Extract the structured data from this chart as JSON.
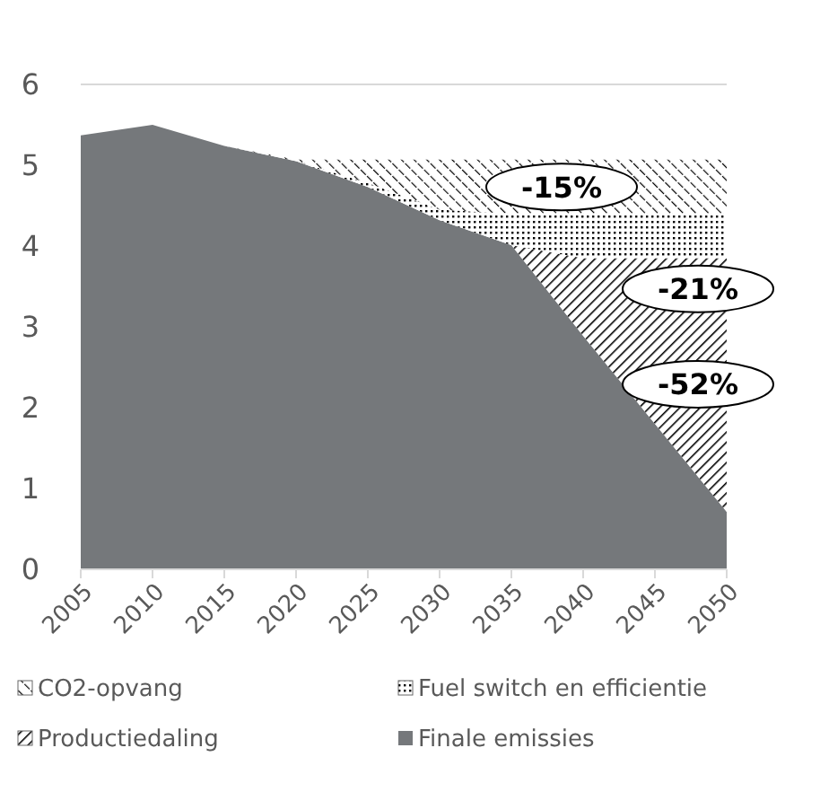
{
  "chart_data": {
    "type": "area",
    "stacked": true,
    "categories": [
      "2005",
      "2010",
      "2015",
      "2020",
      "2025",
      "2030",
      "2035",
      "2040",
      "2045",
      "2050"
    ],
    "series": [
      {
        "name": "Finale emissies",
        "color": "#75787b",
        "values": [
          5.37,
          5.5,
          5.24,
          5.05,
          4.73,
          4.32,
          4.01,
          2.89,
          1.8,
          0.71
        ]
      },
      {
        "name": "Productiedaling",
        "color": "#000000",
        "values": [
          0,
          0,
          0,
          0,
          0,
          0,
          0,
          0.96,
          2.05,
          3.14
        ]
      },
      {
        "name": "Fuel switch en efficientie",
        "color": "#000000",
        "values": [
          0,
          0,
          0,
          0,
          0.05,
          0.13,
          0.39,
          0.55,
          0.55,
          0.55
        ]
      },
      {
        "name": "CO2-opvang",
        "color": "#000000",
        "values": [
          0,
          0,
          0,
          0.02,
          0.29,
          0.62,
          0.67,
          0.67,
          0.67,
          0.67
        ]
      }
    ],
    "ylim": [
      0,
      6
    ],
    "yticks": [
      0,
      1,
      2,
      3,
      4,
      5,
      6
    ],
    "grid": "y",
    "legend": "bottom",
    "annotations": [
      "-15%",
      "-21%",
      "-52%"
    ]
  }
}
